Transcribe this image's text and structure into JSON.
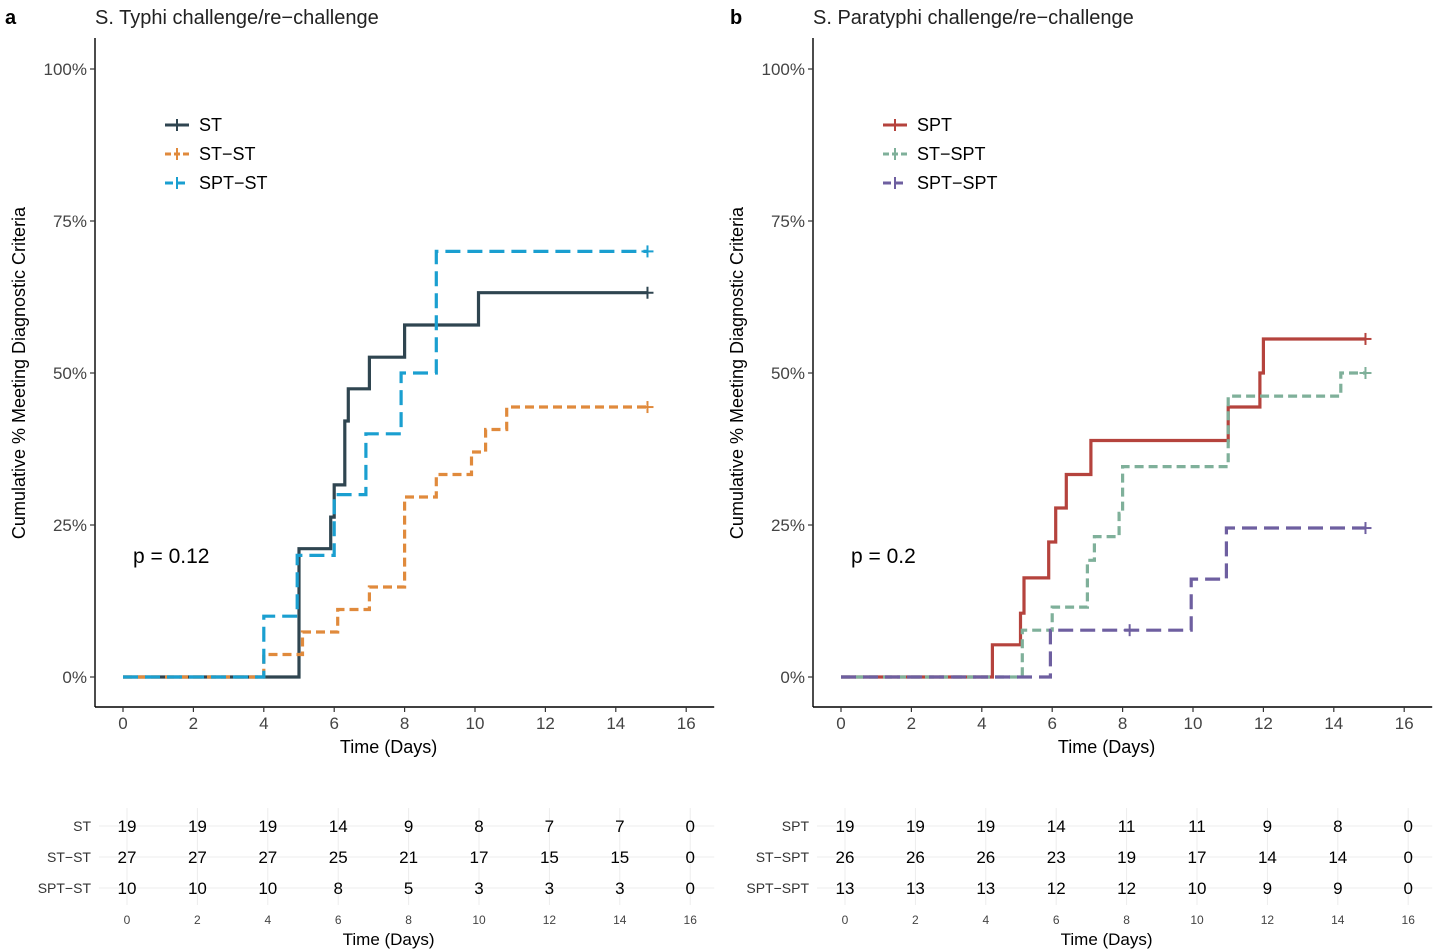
{
  "chart_data": [
    {
      "type": "line",
      "step": true,
      "panel_label": "a",
      "title": "S. Typhi challenge/re−challenge",
      "xlabel": "Time (Days)",
      "ylabel": "Cumulative % Meeting Diagnostic Criteria",
      "xlim": [
        0,
        16
      ],
      "ylim": [
        0,
        100
      ],
      "x_ticks": [
        "0",
        "2",
        "4",
        "6",
        "8",
        "10",
        "12",
        "14",
        "16"
      ],
      "y_ticks": [
        "0%",
        "25%",
        "50%",
        "75%",
        "100%"
      ],
      "grid": false,
      "legend_position": "top-left",
      "annotation": "p = 0.12",
      "series": [
        {
          "name": "ST",
          "color": "#2f4550",
          "dash": "solid",
          "x": [
            0,
            4.95,
            5.0,
            5.9,
            6.0,
            6.3,
            6.4,
            7.0,
            8.0,
            10.1,
            14.9
          ],
          "y": [
            0,
            0,
            21.1,
            26.3,
            31.6,
            42.1,
            47.4,
            52.6,
            57.9,
            63.2,
            63.2
          ],
          "censor": [
            {
              "x": 14.9,
              "y": 63.2
            }
          ]
        },
        {
          "name": "ST−ST",
          "color": "#e08a3c",
          "dash": "short",
          "x": [
            0,
            4.0,
            5.1,
            6.1,
            7.0,
            8.0,
            8.9,
            9.9,
            10.3,
            10.9,
            14.9
          ],
          "y": [
            0,
            3.7,
            7.4,
            11.1,
            14.8,
            29.6,
            33.3,
            37.0,
            40.7,
            44.4,
            44.4
          ],
          "censor": [
            {
              "x": 14.9,
              "y": 44.4
            }
          ]
        },
        {
          "name": "SPT−ST",
          "color": "#1a9fd0",
          "dash": "long",
          "x": [
            0,
            4.0,
            4.95,
            6.0,
            6.9,
            7.9,
            8.9,
            14.9
          ],
          "y": [
            0,
            10,
            20,
            30,
            40,
            50,
            70,
            70
          ],
          "censor": [
            {
              "x": 14.9,
              "y": 70
            }
          ]
        }
      ],
      "risk_table": {
        "xlabel": "Time (Days)",
        "x_ticks": [
          "0",
          "2",
          "4",
          "6",
          "8",
          "10",
          "12",
          "14",
          "16"
        ],
        "rows": [
          {
            "label": "ST",
            "values": [
              "19",
              "19",
              "19",
              "14",
              "9",
              "8",
              "7",
              "7",
              "0"
            ]
          },
          {
            "label": "ST−ST",
            "values": [
              "27",
              "27",
              "27",
              "25",
              "21",
              "17",
              "15",
              "15",
              "0"
            ]
          },
          {
            "label": "SPT−ST",
            "values": [
              "10",
              "10",
              "10",
              "8",
              "5",
              "3",
              "3",
              "3",
              "0"
            ]
          }
        ]
      }
    },
    {
      "type": "line",
      "step": true,
      "panel_label": "b",
      "title": "S. Paratyphi challenge/re−challenge",
      "xlabel": "Time (Days)",
      "ylabel": "Cumulative % Meeting Diagnostic Criteria",
      "xlim": [
        0,
        16
      ],
      "ylim": [
        0,
        100
      ],
      "x_ticks": [
        "0",
        "2",
        "4",
        "6",
        "8",
        "10",
        "12",
        "14",
        "16"
      ],
      "y_ticks": [
        "0%",
        "25%",
        "50%",
        "75%",
        "100%"
      ],
      "grid": false,
      "legend_position": "top-left",
      "annotation": "p = 0.2",
      "series": [
        {
          "name": "SPT",
          "color": "#b5433d",
          "dash": "solid",
          "x": [
            0,
            4.3,
            5.1,
            5.2,
            5.9,
            6.1,
            6.4,
            7.1,
            11.0,
            11.9,
            12.0,
            14.9
          ],
          "y": [
            0,
            5.3,
            10.5,
            16.3,
            22.2,
            27.8,
            33.3,
            38.9,
            44.4,
            50.0,
            55.6,
            55.6
          ],
          "censor": [
            {
              "x": 14.9,
              "y": 55.6
            }
          ]
        },
        {
          "name": "ST−SPT",
          "color": "#7fb09a",
          "dash": "short",
          "x": [
            0,
            5.15,
            6.0,
            7.0,
            7.2,
            7.9,
            8.0,
            11.0,
            14.2,
            14.9
          ],
          "y": [
            0,
            7.7,
            11.5,
            19.2,
            23.1,
            26.9,
            34.6,
            46.2,
            50.0,
            50.0
          ],
          "censor": [
            {
              "x": 14.9,
              "y": 50.0
            }
          ]
        },
        {
          "name": "SPT−SPT",
          "color": "#6e5fa0",
          "dash": "long",
          "x": [
            0,
            5.95,
            9.95,
            10.95,
            14.9
          ],
          "y": [
            0,
            7.7,
            16.1,
            24.5,
            24.5
          ],
          "censor": [
            {
              "x": 8.2,
              "y": 7.7
            },
            {
              "x": 14.9,
              "y": 24.5
            }
          ]
        }
      ],
      "risk_table": {
        "xlabel": "Time (Days)",
        "x_ticks": [
          "0",
          "2",
          "4",
          "6",
          "8",
          "10",
          "12",
          "14",
          "16"
        ],
        "rows": [
          {
            "label": "SPT",
            "values": [
              "19",
              "19",
              "19",
              "14",
              "11",
              "11",
              "9",
              "8",
              "0"
            ]
          },
          {
            "label": "ST−SPT",
            "values": [
              "26",
              "26",
              "26",
              "23",
              "19",
              "17",
              "14",
              "14",
              "0"
            ]
          },
          {
            "label": "SPT−SPT",
            "values": [
              "13",
              "13",
              "13",
              "12",
              "12",
              "10",
              "9",
              "9",
              "0"
            ]
          }
        ]
      }
    }
  ]
}
